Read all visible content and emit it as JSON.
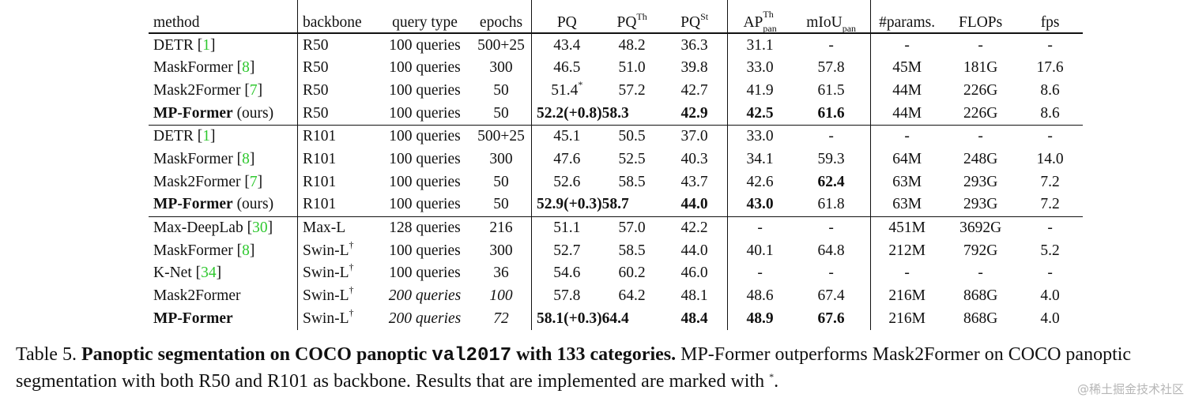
{
  "table": {
    "headers": {
      "method": "method",
      "backbone": "backbone",
      "query_type": "query type",
      "epochs": "epochs",
      "pq": "PQ",
      "pq_th_base": "PQ",
      "pq_th_sup": "Th",
      "pq_st_base": "PQ",
      "pq_st_sup": "St",
      "ap_base": "AP",
      "ap_sup": "Th",
      "ap_sub": "pan",
      "miou_base": "mIoU",
      "miou_sub": "pan",
      "params": "#params.",
      "flops": "FLOPs",
      "fps": "fps"
    },
    "rows": [
      {
        "method": "DETR",
        "cite": "1",
        "backbone": "R50",
        "query": "100 queries",
        "epochs": "500+25",
        "pq": "43.4",
        "pq_th": "48.2",
        "pq_st": "36.3",
        "ap": "31.1",
        "miou": "-",
        "params": "-",
        "flops": "-",
        "fps": "-"
      },
      {
        "method": "MaskFormer",
        "cite": "8",
        "backbone": "R50",
        "query": "100 queries",
        "epochs": "300",
        "pq": "46.5",
        "pq_th": "51.0",
        "pq_st": "39.8",
        "ap": "33.0",
        "miou": "57.8",
        "params": "45M",
        "flops": "181G",
        "fps": "17.6"
      },
      {
        "method": "Mask2Former",
        "cite": "7",
        "backbone": "R50",
        "query": "100 queries",
        "epochs": "50",
        "pq": "51.4",
        "pq_mark": "*",
        "pq_th": "57.2",
        "pq_st": "42.7",
        "ap": "41.9",
        "miou": "61.5",
        "params": "44M",
        "flops": "226G",
        "fps": "8.6"
      },
      {
        "method": "MP-Former",
        "suffix": "(ours)",
        "backbone": "R50",
        "query": "100 queries",
        "epochs": "50",
        "pq": "52.2(+0.8)",
        "pq_th": "58.3",
        "pq_st": "42.9",
        "ap": "42.5",
        "miou": "61.6",
        "params": "44M",
        "flops": "226G",
        "fps": "8.6"
      },
      {
        "method": "DETR",
        "cite": "1",
        "backbone": "R101",
        "query": "100 queries",
        "epochs": "500+25",
        "pq": "45.1",
        "pq_th": "50.5",
        "pq_st": "37.0",
        "ap": "33.0",
        "miou": "-",
        "params": "-",
        "flops": "-",
        "fps": "-"
      },
      {
        "method": "MaskFormer",
        "cite": "8",
        "backbone": "R101",
        "query": "100 queries",
        "epochs": "300",
        "pq": "47.6",
        "pq_th": "52.5",
        "pq_st": "40.3",
        "ap": "34.1",
        "miou": "59.3",
        "params": "64M",
        "flops": "248G",
        "fps": "14.0"
      },
      {
        "method": "Mask2Former",
        "cite": "7",
        "backbone": "R101",
        "query": "100 queries",
        "epochs": "50",
        "pq": "52.6",
        "pq_th": "58.5",
        "pq_st": "43.7",
        "ap": "42.6",
        "miou": "62.4",
        "params": "63M",
        "flops": "293G",
        "fps": "7.2"
      },
      {
        "method": "MP-Former",
        "suffix": "(ours)",
        "backbone": "R101",
        "query": "100 queries",
        "epochs": "50",
        "pq": "52.9(+0.3)",
        "pq_th": "58.7",
        "pq_st": "44.0",
        "ap": "43.0",
        "miou": "61.8",
        "params": "63M",
        "flops": "293G",
        "fps": "7.2"
      },
      {
        "method": "Max-DeepLab",
        "cite": "30",
        "backbone": "Max-L",
        "query": "128 queries",
        "epochs": "216",
        "pq": "51.1",
        "pq_th": "57.0",
        "pq_st": "42.2",
        "ap": "-",
        "miou": "-",
        "params": "451M",
        "flops": "3692G",
        "fps": "-"
      },
      {
        "method": "MaskFormer",
        "cite": "8",
        "backbone": "Swin-L",
        "backbone_mark": "†",
        "query": "100 queries",
        "epochs": "300",
        "pq": "52.7",
        "pq_th": "58.5",
        "pq_st": "44.0",
        "ap": "40.1",
        "miou": "64.8",
        "params": "212M",
        "flops": "792G",
        "fps": "5.2"
      },
      {
        "method": "K-Net",
        "cite": "34",
        "backbone": "Swin-L",
        "backbone_mark": "†",
        "query": "100 queries",
        "epochs": "36",
        "pq": "54.6",
        "pq_th": "60.2",
        "pq_st": "46.0",
        "ap": "-",
        "miou": "-",
        "params": "-",
        "flops": "-",
        "fps": "-"
      },
      {
        "method": "Mask2Former",
        "backbone": "Swin-L",
        "backbone_mark": "†",
        "query": "200 queries",
        "epochs": "100",
        "pq": "57.8",
        "pq_th": "64.2",
        "pq_st": "48.1",
        "ap": "48.6",
        "miou": "67.4",
        "params": "216M",
        "flops": "868G",
        "fps": "4.0"
      },
      {
        "method": "MP-Former",
        "backbone": "Swin-L",
        "backbone_mark": "†",
        "query": "200 queries",
        "epochs": "72",
        "pq": "58.1(+0.3)",
        "pq_th": "64.4",
        "pq_st": "48.4",
        "ap": "48.9",
        "miou": "67.6",
        "params": "216M",
        "flops": "868G",
        "fps": "4.0"
      }
    ]
  },
  "caption": {
    "label": "Table 5.",
    "bold_text": "Panoptic segmentation on COCO panoptic",
    "code": "val2017",
    "bold_tail": "with 133 categories.",
    "text": "MP-Former outperforms Mask2Former on COCO panoptic segmentation with both R50 and R101 as backbone. Results that are implemented are marked with",
    "mark": "*",
    "end": "."
  },
  "watermark": "@稀土掘金技术社区"
}
